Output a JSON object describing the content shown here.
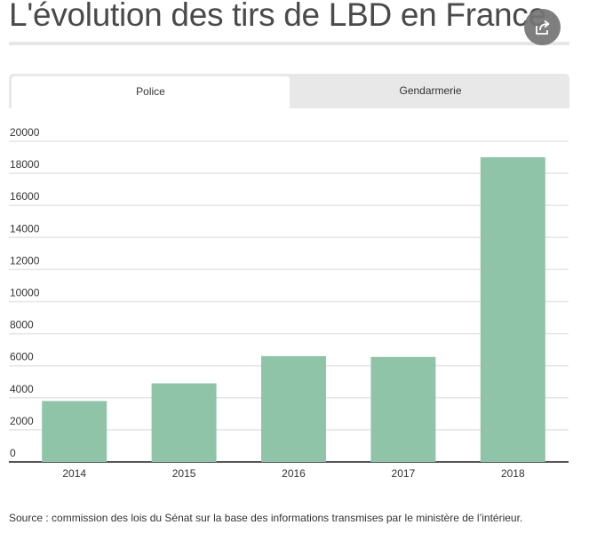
{
  "title": "L'évolution des tirs de LBD en France",
  "share_icon": "share-icon",
  "tabs": [
    {
      "label": "Police",
      "active": true
    },
    {
      "label": "Gendarmerie",
      "active": false
    }
  ],
  "colors": {
    "bar": "#8fc4a8",
    "grid": "#e5e5e5",
    "axis": "#555555"
  },
  "chart_data": {
    "type": "bar",
    "title": "",
    "categories": [
      "2014",
      "2015",
      "2016",
      "2017",
      "2018"
    ],
    "values": [
      3800,
      4900,
      6600,
      6550,
      19000
    ],
    "yticks": [
      "20000",
      "18000",
      "16000",
      "14000",
      "12000",
      "10000",
      "8000",
      "6000",
      "4000",
      "2000",
      "0"
    ],
    "ylim": [
      0,
      20000
    ],
    "xlabel": "",
    "ylabel": ""
  },
  "source": "Source : commission des lois du Sénat sur la base des informations transmises par le ministère de l’intérieur."
}
